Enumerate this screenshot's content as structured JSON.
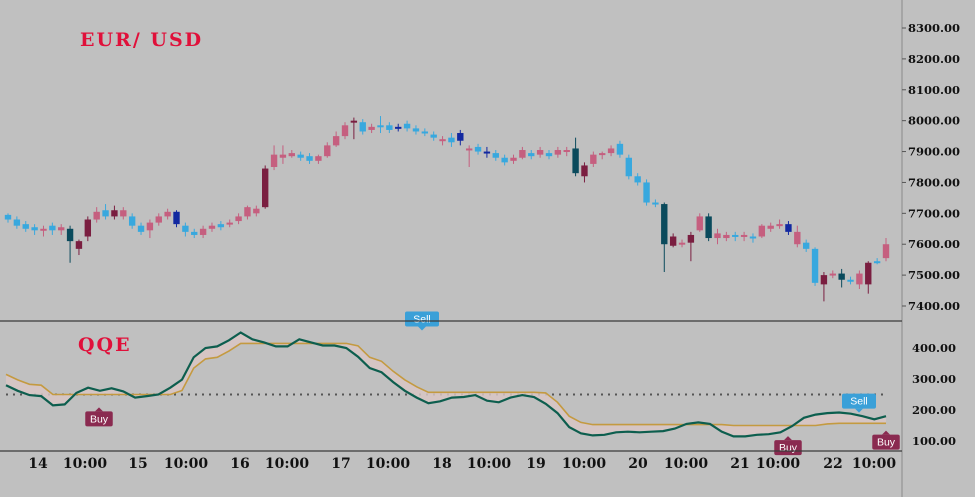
{
  "chart_data": [
    {
      "type": "candlestick",
      "title": "EUR/ USD",
      "ylim": [
        7330,
        8340
      ],
      "y_ticks": [
        "8300.00",
        "8200.00",
        "8100.00",
        "8000.00",
        "7900.00",
        "7800.00",
        "7700.00",
        "7600.00",
        "7500.00",
        "7400.00"
      ],
      "x_ticks": [
        "14",
        "10:00",
        "15",
        "10:00",
        "16",
        "10:00",
        "17",
        "10:00",
        "18",
        "10:00",
        "19",
        "10:00",
        "20",
        "10:00",
        "21",
        "10:00",
        "22",
        "10:00"
      ],
      "colors": {
        "bull_strong": "#7a1e40",
        "bull": "#c55f7f",
        "bear_strong": "#0a4a5c",
        "bear": "#38a8de",
        "bear_deep": "#1228a0"
      },
      "candles": [
        {
          "o": 7695,
          "c": 7680,
          "h": 7700,
          "l": 7670,
          "k": "bear"
        },
        {
          "o": 7680,
          "c": 7660,
          "h": 7690,
          "l": 7650,
          "k": "bear"
        },
        {
          "o": 7665,
          "c": 7650,
          "h": 7675,
          "l": 7640,
          "k": "bear"
        },
        {
          "o": 7655,
          "c": 7645,
          "h": 7665,
          "l": 7630,
          "k": "bear"
        },
        {
          "o": 7645,
          "c": 7650,
          "h": 7660,
          "l": 7625,
          "k": "bull"
        },
        {
          "o": 7660,
          "c": 7645,
          "h": 7670,
          "l": 7630,
          "k": "bear"
        },
        {
          "o": 7645,
          "c": 7655,
          "h": 7665,
          "l": 7630,
          "k": "bull"
        },
        {
          "o": 7650,
          "c": 7610,
          "h": 7660,
          "l": 7540,
          "k": "bear_strong"
        },
        {
          "o": 7610,
          "c": 7585,
          "h": 7615,
          "l": 7565,
          "k": "bull_strong"
        },
        {
          "o": 7625,
          "c": 7680,
          "h": 7690,
          "l": 7610,
          "k": "bull_strong"
        },
        {
          "o": 7680,
          "c": 7705,
          "h": 7720,
          "l": 7670,
          "k": "bull"
        },
        {
          "o": 7710,
          "c": 7690,
          "h": 7730,
          "l": 7680,
          "k": "bear"
        },
        {
          "o": 7690,
          "c": 7710,
          "h": 7725,
          "l": 7680,
          "k": "bull_strong"
        },
        {
          "o": 7710,
          "c": 7690,
          "h": 7720,
          "l": 7680,
          "k": "bull"
        },
        {
          "o": 7690,
          "c": 7660,
          "h": 7700,
          "l": 7650,
          "k": "bear"
        },
        {
          "o": 7660,
          "c": 7640,
          "h": 7670,
          "l": 7630,
          "k": "bear"
        },
        {
          "o": 7645,
          "c": 7670,
          "h": 7680,
          "l": 7620,
          "k": "bull"
        },
        {
          "o": 7670,
          "c": 7690,
          "h": 7700,
          "l": 7660,
          "k": "bull"
        },
        {
          "o": 7690,
          "c": 7705,
          "h": 7715,
          "l": 7680,
          "k": "bull"
        },
        {
          "o": 7705,
          "c": 7665,
          "h": 7710,
          "l": 7655,
          "k": "bear_deep"
        },
        {
          "o": 7660,
          "c": 7640,
          "h": 7670,
          "l": 7625,
          "k": "bear"
        },
        {
          "o": 7640,
          "c": 7630,
          "h": 7650,
          "l": 7620,
          "k": "bear"
        },
        {
          "o": 7630,
          "c": 7650,
          "h": 7660,
          "l": 7620,
          "k": "bull"
        },
        {
          "o": 7650,
          "c": 7660,
          "h": 7670,
          "l": 7640,
          "k": "bull"
        },
        {
          "o": 7655,
          "c": 7665,
          "h": 7675,
          "l": 7645,
          "k": "bear"
        },
        {
          "o": 7665,
          "c": 7670,
          "h": 7680,
          "l": 7655,
          "k": "bull"
        },
        {
          "o": 7675,
          "c": 7690,
          "h": 7700,
          "l": 7665,
          "k": "bull"
        },
        {
          "o": 7690,
          "c": 7720,
          "h": 7725,
          "l": 7680,
          "k": "bull"
        },
        {
          "o": 7700,
          "c": 7715,
          "h": 7725,
          "l": 7690,
          "k": "bull"
        },
        {
          "o": 7720,
          "c": 7845,
          "h": 7855,
          "l": 7715,
          "k": "bull_strong"
        },
        {
          "o": 7850,
          "c": 7890,
          "h": 7920,
          "l": 7840,
          "k": "bull"
        },
        {
          "o": 7880,
          "c": 7890,
          "h": 7920,
          "l": 7860,
          "k": "bull"
        },
        {
          "o": 7885,
          "c": 7895,
          "h": 7905,
          "l": 7880,
          "k": "bull"
        },
        {
          "o": 7890,
          "c": 7880,
          "h": 7900,
          "l": 7870,
          "k": "bear"
        },
        {
          "o": 7885,
          "c": 7870,
          "h": 7895,
          "l": 7860,
          "k": "bear"
        },
        {
          "o": 7870,
          "c": 7885,
          "h": 7890,
          "l": 7860,
          "k": "bull"
        },
        {
          "o": 7885,
          "c": 7920,
          "h": 7930,
          "l": 7880,
          "k": "bull"
        },
        {
          "o": 7920,
          "c": 7950,
          "h": 7965,
          "l": 7915,
          "k": "bull"
        },
        {
          "o": 7950,
          "c": 7985,
          "h": 7995,
          "l": 7940,
          "k": "bull"
        },
        {
          "o": 7995,
          "c": 8000,
          "h": 8010,
          "l": 7940,
          "k": "bull_strong"
        },
        {
          "o": 7995,
          "c": 7965,
          "h": 8005,
          "l": 7955,
          "k": "bear"
        },
        {
          "o": 7970,
          "c": 7980,
          "h": 7990,
          "l": 7960,
          "k": "bull"
        },
        {
          "o": 7980,
          "c": 7985,
          "h": 8015,
          "l": 7960,
          "k": "bear"
        },
        {
          "o": 7985,
          "c": 7970,
          "h": 7995,
          "l": 7960,
          "k": "bear"
        },
        {
          "o": 7980,
          "c": 7975,
          "h": 7990,
          "l": 7965,
          "k": "bear_deep"
        },
        {
          "o": 7990,
          "c": 7975,
          "h": 8000,
          "l": 7965,
          "k": "bear"
        },
        {
          "o": 7975,
          "c": 7965,
          "h": 7985,
          "l": 7955,
          "k": "bear"
        },
        {
          "o": 7965,
          "c": 7960,
          "h": 7975,
          "l": 7950,
          "k": "bear"
        },
        {
          "o": 7955,
          "c": 7945,
          "h": 7965,
          "l": 7935,
          "k": "bear"
        },
        {
          "o": 7940,
          "c": 7935,
          "h": 7950,
          "l": 7920,
          "k": "bull"
        },
        {
          "o": 7945,
          "c": 7930,
          "h": 7960,
          "l": 7915,
          "k": "bear"
        },
        {
          "o": 7960,
          "c": 7935,
          "h": 7970,
          "l": 7920,
          "k": "bear_deep"
        },
        {
          "o": 7905,
          "c": 7910,
          "h": 7920,
          "l": 7850,
          "k": "bull"
        },
        {
          "o": 7915,
          "c": 7900,
          "h": 7925,
          "l": 7890,
          "k": "bear"
        },
        {
          "o": 7900,
          "c": 7895,
          "h": 7915,
          "l": 7880,
          "k": "bear_deep"
        },
        {
          "o": 7895,
          "c": 7880,
          "h": 7905,
          "l": 7870,
          "k": "bear"
        },
        {
          "o": 7880,
          "c": 7865,
          "h": 7890,
          "l": 7855,
          "k": "bear"
        },
        {
          "o": 7870,
          "c": 7880,
          "h": 7890,
          "l": 7860,
          "k": "bull"
        },
        {
          "o": 7880,
          "c": 7905,
          "h": 7915,
          "l": 7875,
          "k": "bull"
        },
        {
          "o": 7895,
          "c": 7885,
          "h": 7905,
          "l": 7875,
          "k": "bear"
        },
        {
          "o": 7890,
          "c": 7905,
          "h": 7915,
          "l": 7880,
          "k": "bull"
        },
        {
          "o": 7895,
          "c": 7885,
          "h": 7905,
          "l": 7875,
          "k": "bear"
        },
        {
          "o": 7890,
          "c": 7905,
          "h": 7915,
          "l": 7880,
          "k": "bull"
        },
        {
          "o": 7900,
          "c": 7905,
          "h": 7915,
          "l": 7885,
          "k": "bull"
        },
        {
          "o": 7910,
          "c": 7830,
          "h": 7945,
          "l": 7820,
          "k": "bear_strong"
        },
        {
          "o": 7820,
          "c": 7855,
          "h": 7865,
          "l": 7800,
          "k": "bull_strong"
        },
        {
          "o": 7860,
          "c": 7890,
          "h": 7900,
          "l": 7850,
          "k": "bull"
        },
        {
          "o": 7890,
          "c": 7895,
          "h": 7900,
          "l": 7875,
          "k": "bull"
        },
        {
          "o": 7895,
          "c": 7910,
          "h": 7920,
          "l": 7885,
          "k": "bull"
        },
        {
          "o": 7925,
          "c": 7890,
          "h": 7935,
          "l": 7880,
          "k": "bear"
        },
        {
          "o": 7880,
          "c": 7820,
          "h": 7890,
          "l": 7810,
          "k": "bear"
        },
        {
          "o": 7820,
          "c": 7800,
          "h": 7830,
          "l": 7790,
          "k": "bear"
        },
        {
          "o": 7800,
          "c": 7735,
          "h": 7810,
          "l": 7725,
          "k": "bear"
        },
        {
          "o": 7735,
          "c": 7730,
          "h": 7745,
          "l": 7720,
          "k": "bear"
        },
        {
          "o": 7730,
          "c": 7600,
          "h": 7735,
          "l": 7510,
          "k": "bear_strong"
        },
        {
          "o": 7595,
          "c": 7625,
          "h": 7635,
          "l": 7590,
          "k": "bull_strong"
        },
        {
          "o": 7600,
          "c": 7605,
          "h": 7615,
          "l": 7590,
          "k": "bull"
        },
        {
          "o": 7605,
          "c": 7630,
          "h": 7640,
          "l": 7545,
          "k": "bull_strong"
        },
        {
          "o": 7645,
          "c": 7690,
          "h": 7700,
          "l": 7640,
          "k": "bull"
        },
        {
          "o": 7690,
          "c": 7620,
          "h": 7700,
          "l": 7610,
          "k": "bear_strong"
        },
        {
          "o": 7620,
          "c": 7635,
          "h": 7650,
          "l": 7600,
          "k": "bull"
        },
        {
          "o": 7620,
          "c": 7630,
          "h": 7640,
          "l": 7610,
          "k": "bull"
        },
        {
          "o": 7630,
          "c": 7625,
          "h": 7640,
          "l": 7610,
          "k": "bear"
        },
        {
          "o": 7625,
          "c": 7630,
          "h": 7640,
          "l": 7610,
          "k": "bull"
        },
        {
          "o": 7625,
          "c": 7620,
          "h": 7635,
          "l": 7605,
          "k": "bear"
        },
        {
          "o": 7625,
          "c": 7660,
          "h": 7665,
          "l": 7620,
          "k": "bull"
        },
        {
          "o": 7650,
          "c": 7660,
          "h": 7670,
          "l": 7640,
          "k": "bull"
        },
        {
          "o": 7660,
          "c": 7665,
          "h": 7680,
          "l": 7650,
          "k": "bull"
        },
        {
          "o": 7665,
          "c": 7640,
          "h": 7675,
          "l": 7630,
          "k": "bear_deep"
        },
        {
          "o": 7640,
          "c": 7600,
          "h": 7660,
          "l": 7590,
          "k": "bull"
        },
        {
          "o": 7605,
          "c": 7585,
          "h": 7615,
          "l": 7575,
          "k": "bear"
        },
        {
          "o": 7585,
          "c": 7475,
          "h": 7590,
          "l": 7465,
          "k": "bear"
        },
        {
          "o": 7470,
          "c": 7500,
          "h": 7510,
          "l": 7415,
          "k": "bull_strong"
        },
        {
          "o": 7500,
          "c": 7505,
          "h": 7515,
          "l": 7490,
          "k": "bull"
        },
        {
          "o": 7505,
          "c": 7485,
          "h": 7520,
          "l": 7460,
          "k": "bear_strong"
        },
        {
          "o": 7485,
          "c": 7480,
          "h": 7495,
          "l": 7470,
          "k": "bear"
        },
        {
          "o": 7470,
          "c": 7505,
          "h": 7515,
          "l": 7455,
          "k": "bull"
        },
        {
          "o": 7470,
          "c": 7540,
          "h": 7545,
          "l": 7440,
          "k": "bull_strong"
        },
        {
          "o": 7545,
          "c": 7540,
          "h": 7555,
          "l": 7535,
          "k": "bear"
        },
        {
          "o": 7555,
          "c": 7600,
          "h": 7620,
          "l": 7545,
          "k": "bull"
        }
      ]
    },
    {
      "type": "line",
      "title": "QQE",
      "ylim": [
        70,
        470
      ],
      "y_ticks": [
        "400.00",
        "300.00",
        "200.00",
        "100.00"
      ],
      "reference_level": 250,
      "colors": {
        "fast": "#0d5e4e",
        "slow": "#c49a40",
        "fill": "#d8c6c4",
        "buy": "#8a2a50",
        "sell": "#3aa0d8"
      },
      "series": [
        {
          "x": [
            0,
            4,
            8,
            12,
            16,
            20,
            24,
            28,
            32,
            36,
            40,
            44,
            48,
            52,
            56,
            60,
            64,
            68,
            72,
            76,
            80,
            84,
            88,
            92,
            96,
            100
          ],
          "values": [
            280,
            262,
            248,
            245,
            215,
            218,
            255,
            272,
            262,
            270,
            260,
            240,
            245,
            250,
            272,
            298,
            370,
            400,
            405,
            425,
            450,
            428,
            418,
            405,
            405,
            432
          ]
        },
        {
          "x": [
            100,
            104,
            108,
            112,
            116,
            120,
            124,
            128,
            132,
            136,
            140,
            144,
            148,
            152,
            156,
            160,
            164,
            168,
            172,
            176,
            180,
            184,
            188,
            192,
            196,
            200
          ],
          "values": [
            428,
            418,
            408,
            408,
            400,
            372,
            335,
            322,
            290,
            262,
            240,
            222,
            228,
            240,
            242,
            248,
            230,
            225,
            240,
            248,
            242,
            220,
            190,
            145,
            125,
            118
          ]
        },
        {
          "x": [
            200,
            204,
            208,
            212,
            216,
            220,
            224,
            228,
            232,
            236,
            240,
            244,
            248,
            252,
            256,
            260,
            264,
            268,
            272,
            276,
            280,
            284,
            288,
            292,
            296,
            300
          ],
          "values": [
            118,
            120,
            128,
            130,
            128,
            130,
            132,
            140,
            155,
            160,
            155,
            130,
            115,
            115,
            120,
            122,
            128,
            148,
            175,
            185,
            190,
            192,
            188,
            180,
            170,
            180
          ]
        }
      ],
      "signals": [
        {
          "label": "Buy",
          "kind": "buy",
          "value": 215
        },
        {
          "label": "Sell",
          "kind": "sell",
          "value": 450
        },
        {
          "label": "Buy",
          "kind": "buy",
          "value": 122
        },
        {
          "label": "Sell",
          "kind": "sell",
          "value": 185
        },
        {
          "label": "Buy",
          "kind": "buy",
          "value": 140
        }
      ]
    }
  ]
}
